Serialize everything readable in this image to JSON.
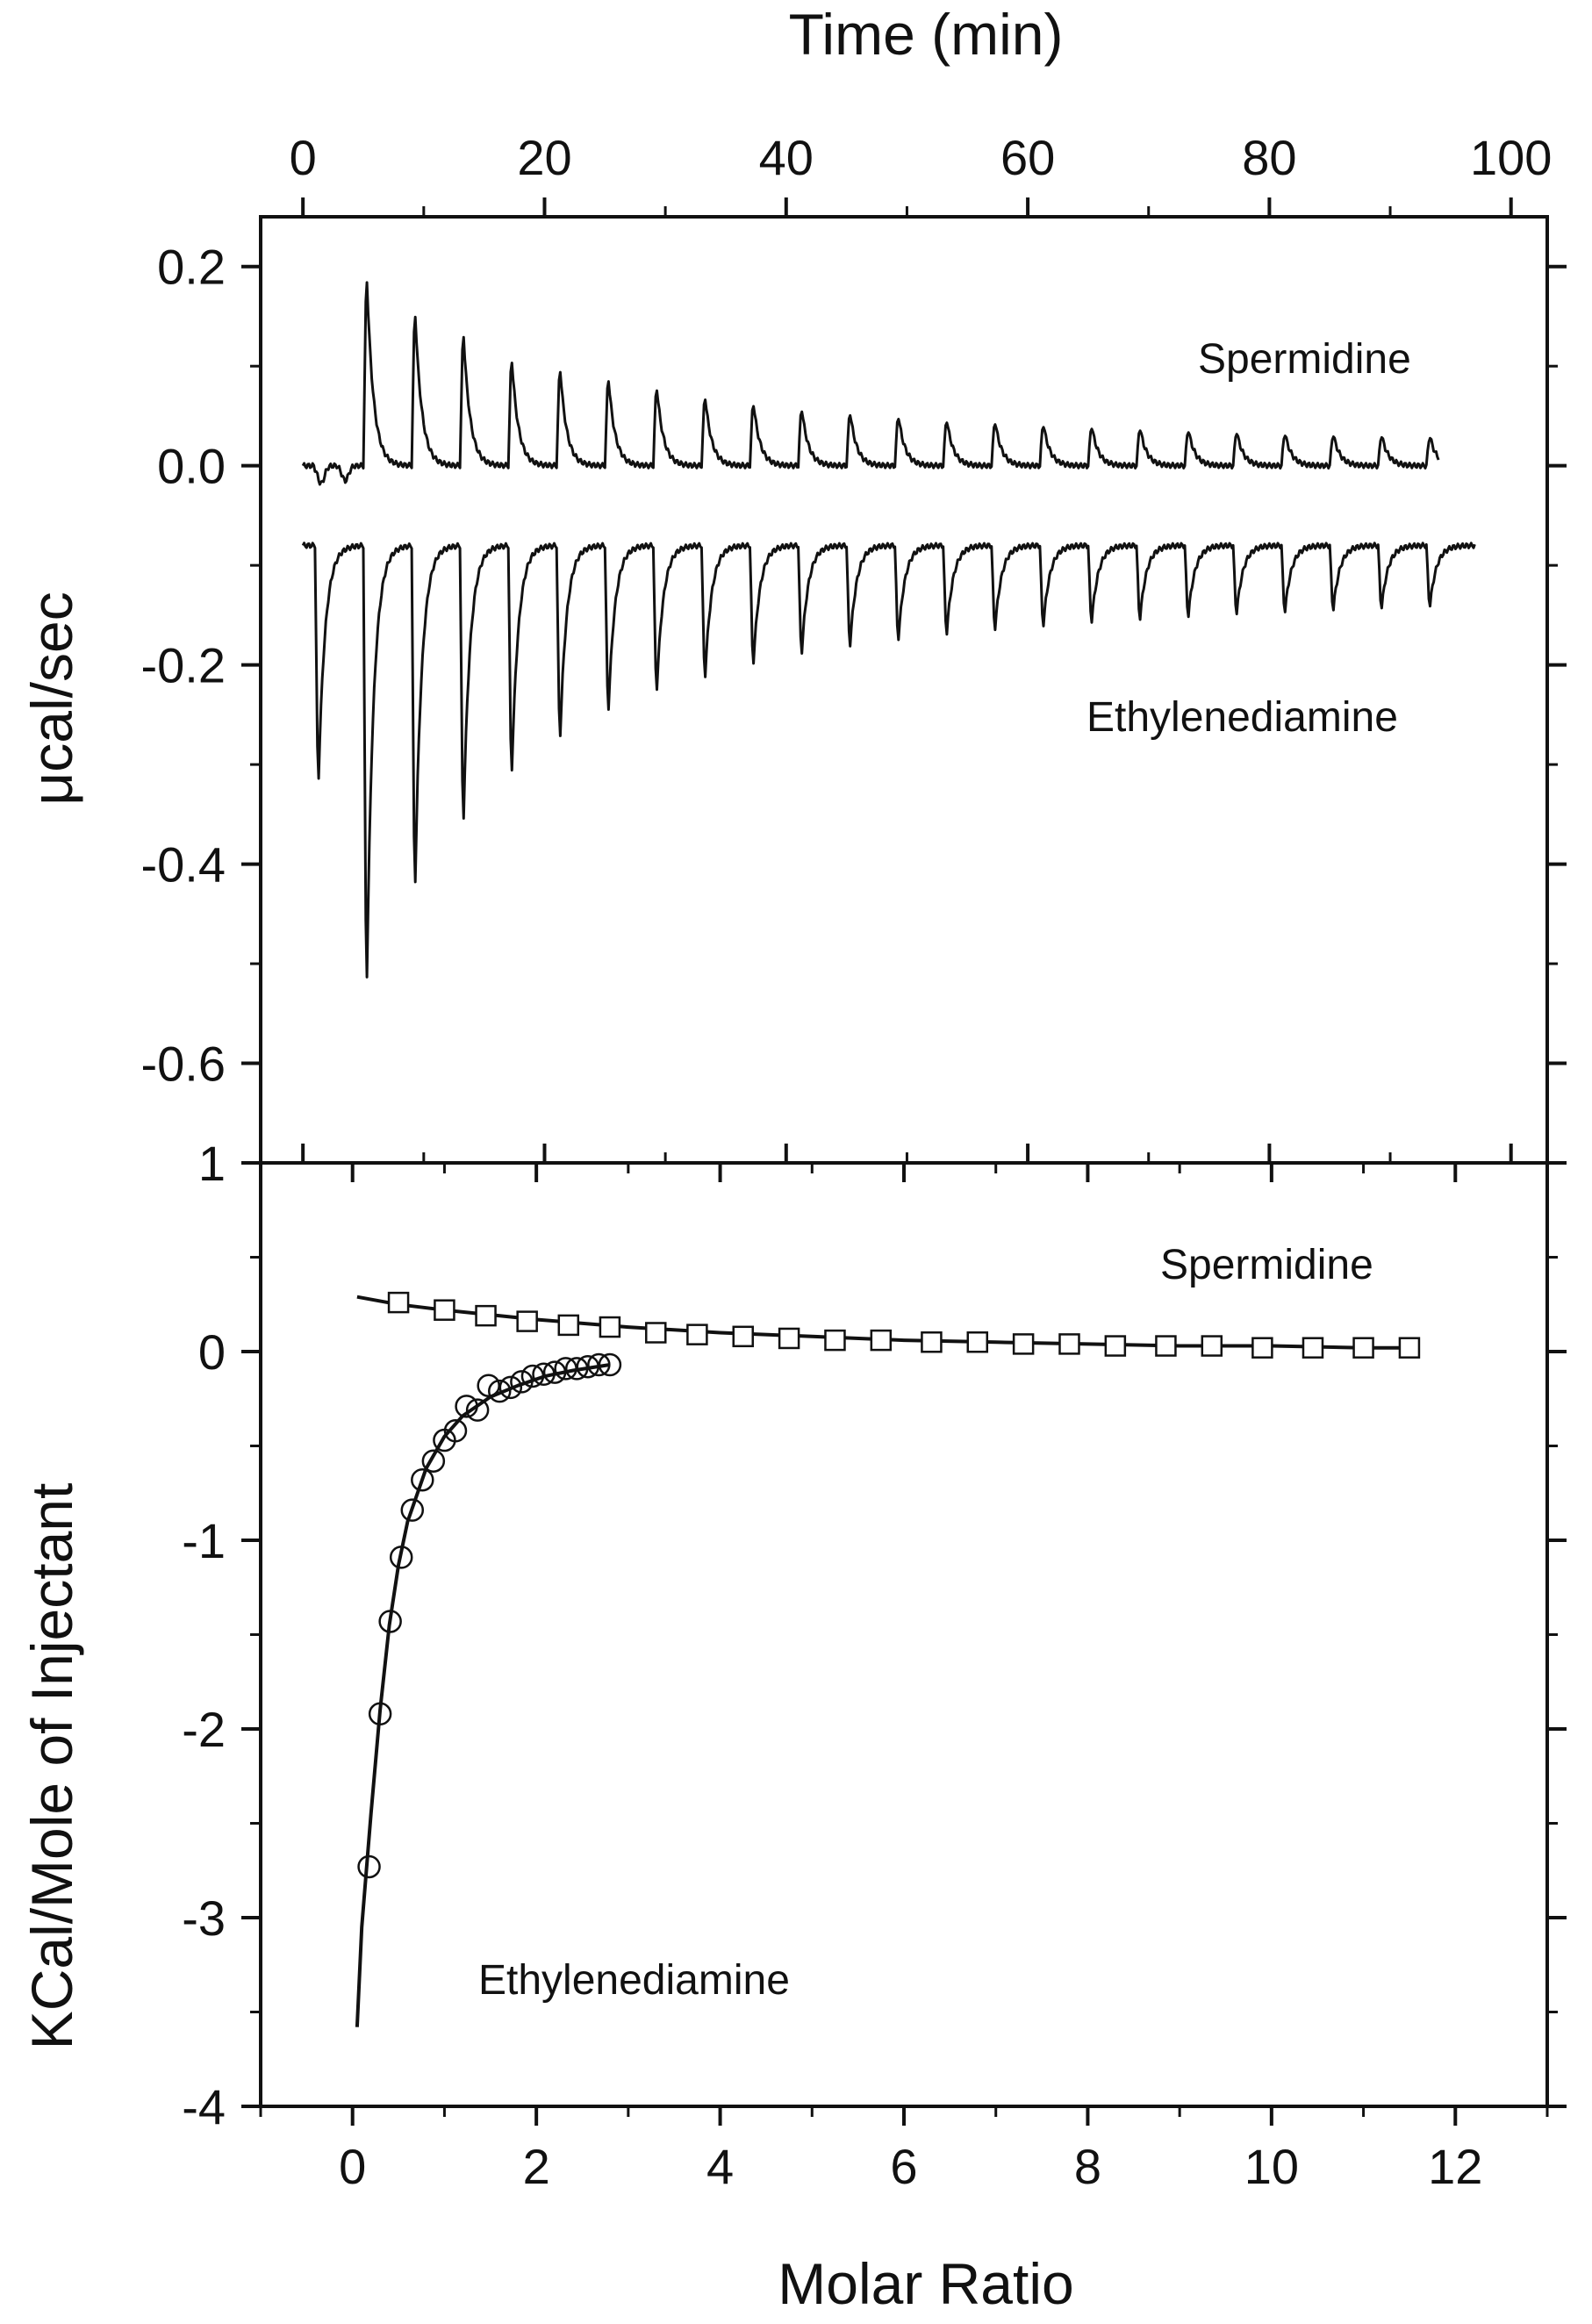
{
  "chart_data": [
    {
      "panel": "top",
      "type": "line",
      "xlabel": "Time (min)",
      "ylabel": "μcal/sec",
      "xlim": [
        -3.5,
        103
      ],
      "ylim": [
        -0.7,
        0.25
      ],
      "xticks": [
        0,
        20,
        40,
        60,
        80,
        100
      ],
      "xtick_labels": [
        "0",
        "20",
        "40",
        "60",
        "80",
        "100"
      ],
      "yticks": [
        0.2,
        0.0,
        -0.2,
        -0.4,
        -0.6
      ],
      "ytick_labels": [
        "0.2",
        "0.0",
        "-0.2",
        "-0.4",
        "-0.6"
      ],
      "grid": false,
      "annotations": [
        "Spermidine",
        "Ethylenediamine"
      ],
      "series": [
        {
          "name": "Spermidine",
          "baseline": 0.0,
          "trace_start": 0,
          "trace_end": 94,
          "pre_injection_dip": [
            {
              "t": 1.5,
              "v": -0.018
            },
            {
              "t": 3.5,
              "v": -0.015
            }
          ],
          "injection_times": [
            5,
            9,
            13,
            17,
            21,
            25,
            29,
            33,
            37,
            41,
            45,
            49,
            53,
            57,
            61,
            65,
            69,
            73,
            77,
            81,
            85,
            89,
            93
          ],
          "peak_values": [
            0.203,
            0.165,
            0.143,
            0.115,
            0.105,
            0.095,
            0.085,
            0.075,
            0.068,
            0.062,
            0.058,
            0.054,
            0.05,
            0.048,
            0.045,
            0.043,
            0.041,
            0.039,
            0.037,
            0.035,
            0.034,
            0.033,
            0.032
          ]
        },
        {
          "name": "Ethylenediamine",
          "baseline": -0.08,
          "trace_start": 0,
          "trace_end": 97,
          "injection_times": [
            1,
            5,
            9,
            13,
            17,
            21,
            25,
            29,
            33,
            37,
            41,
            45,
            49,
            53,
            57,
            61,
            65,
            69,
            73,
            77,
            81,
            85,
            89,
            93
          ],
          "peak_values": [
            -0.335,
            -0.553,
            -0.448,
            -0.378,
            -0.325,
            -0.287,
            -0.258,
            -0.236,
            -0.222,
            -0.207,
            -0.196,
            -0.188,
            -0.181,
            -0.175,
            -0.17,
            -0.166,
            -0.162,
            -0.159,
            -0.156,
            -0.153,
            -0.151,
            -0.149,
            -0.147,
            -0.145
          ]
        }
      ]
    },
    {
      "panel": "bottom",
      "type": "scatter",
      "xlabel": "Molar Ratio",
      "ylabel": "KCal/Mole of Injectant",
      "xlim": [
        -1,
        13
      ],
      "ylim": [
        -4,
        1
      ],
      "xticks": [
        0,
        2,
        4,
        6,
        8,
        10,
        12
      ],
      "xtick_labels": [
        "0",
        "2",
        "4",
        "6",
        "8",
        "10",
        "12"
      ],
      "yticks": [
        1,
        0,
        -1,
        -2,
        -3,
        -4
      ],
      "ytick_labels": [
        "1",
        "0",
        "-1",
        "-2",
        "-3",
        "-4"
      ],
      "grid": false,
      "annotations": [
        "Spermidine",
        "Ethylenediamine"
      ],
      "series": [
        {
          "name": "Spermidine",
          "marker": "square",
          "x": [
            0.5,
            1.0,
            1.45,
            1.9,
            2.35,
            2.8,
            3.3,
            3.75,
            4.25,
            4.75,
            5.25,
            5.75,
            6.3,
            6.8,
            7.3,
            7.8,
            8.3,
            8.85,
            9.35,
            9.9,
            10.45,
            11.0,
            11.5
          ],
          "y": [
            0.26,
            0.22,
            0.19,
            0.16,
            0.14,
            0.13,
            0.1,
            0.09,
            0.08,
            0.07,
            0.06,
            0.06,
            0.05,
            0.05,
            0.04,
            0.04,
            0.03,
            0.03,
            0.03,
            0.02,
            0.02,
            0.02,
            0.02
          ]
        },
        {
          "name": "Spermidine fit",
          "style": "line",
          "x": [
            0.05,
            0.5,
            1,
            2,
            3,
            4,
            5,
            6,
            7,
            8,
            9,
            10,
            11,
            11.5
          ],
          "y": [
            0.29,
            0.25,
            0.22,
            0.17,
            0.13,
            0.1,
            0.08,
            0.06,
            0.05,
            0.04,
            0.03,
            0.03,
            0.02,
            0.02
          ]
        },
        {
          "name": "Ethylenediamine",
          "marker": "circle",
          "x": [
            0.18,
            0.3,
            0.41,
            0.53,
            0.65,
            0.76,
            0.88,
            1.0,
            1.12,
            1.24,
            1.36,
            1.48,
            1.6,
            1.72,
            1.84,
            1.96,
            2.08,
            2.2,
            2.32,
            2.44,
            2.56,
            2.68,
            2.8
          ],
          "y": [
            -2.73,
            -1.92,
            -1.43,
            -1.09,
            -0.84,
            -0.68,
            -0.58,
            -0.47,
            -0.42,
            -0.29,
            -0.31,
            -0.18,
            -0.21,
            -0.19,
            -0.16,
            -0.13,
            -0.12,
            -0.11,
            -0.09,
            -0.09,
            -0.08,
            -0.07,
            -0.07
          ]
        },
        {
          "name": "Ethylenediamine fit",
          "style": "line",
          "x": [
            0.05,
            0.1,
            0.2,
            0.3,
            0.4,
            0.5,
            0.6,
            0.8,
            1.0,
            1.2,
            1.5,
            1.8,
            2.1,
            2.4,
            2.8
          ],
          "y": [
            -3.58,
            -3.05,
            -2.45,
            -1.9,
            -1.45,
            -1.13,
            -0.9,
            -0.62,
            -0.45,
            -0.34,
            -0.24,
            -0.18,
            -0.13,
            -0.1,
            -0.07
          ]
        }
      ]
    }
  ]
}
